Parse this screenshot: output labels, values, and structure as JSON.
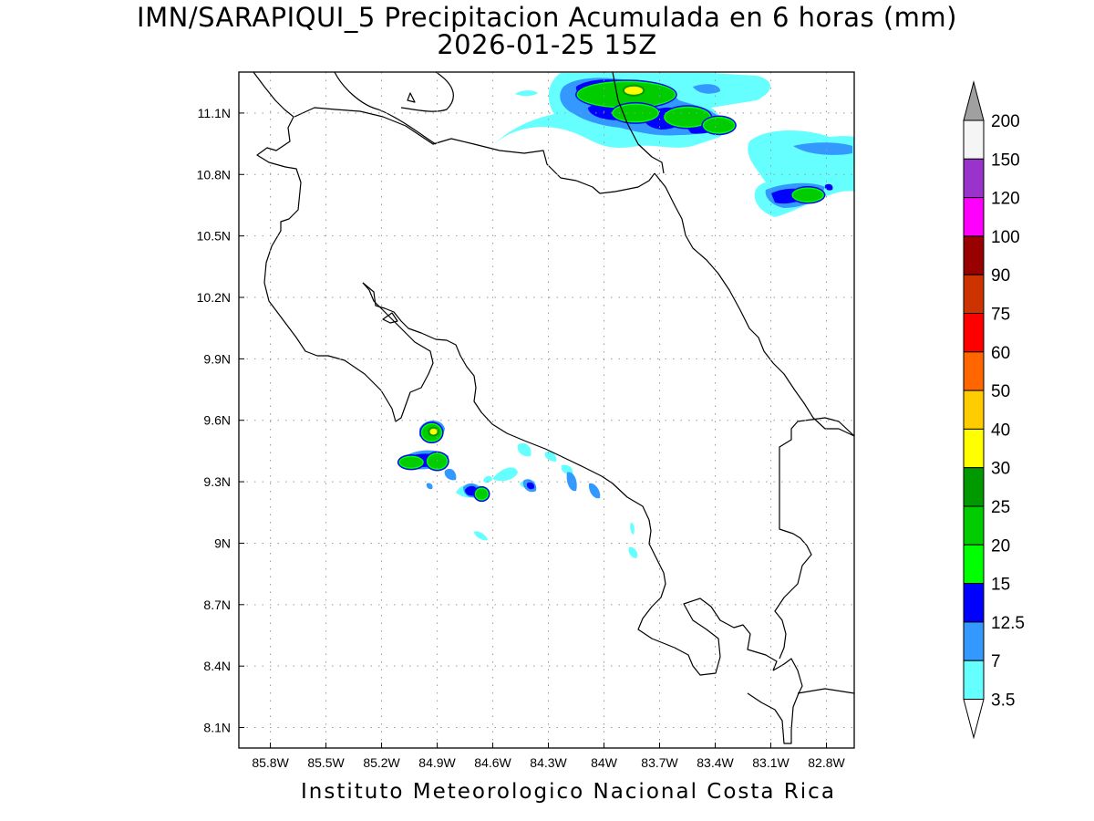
{
  "title": {
    "line1": "IMN/SARAPIQUI_5 Precipitacion Acumulada en 6 horas (mm)",
    "line2": "2026-01-25 15Z"
  },
  "footer": "Instituto Meteorologico Nacional Costa Rica",
  "map": {
    "lon_range": [
      -85.97,
      -82.65
    ],
    "lat_range": [
      8.0,
      11.3
    ],
    "x_ticks": [
      {
        "lon": -85.8,
        "label": "85.8W"
      },
      {
        "lon": -85.5,
        "label": "85.5W"
      },
      {
        "lon": -85.2,
        "label": "85.2W"
      },
      {
        "lon": -84.9,
        "label": "84.9W"
      },
      {
        "lon": -84.6,
        "label": "84.6W"
      },
      {
        "lon": -84.3,
        "label": "84.3W"
      },
      {
        "lon": -84.0,
        "label": "84W"
      },
      {
        "lon": -83.7,
        "label": "83.7W"
      },
      {
        "lon": -83.4,
        "label": "83.4W"
      },
      {
        "lon": -83.1,
        "label": "83.1W"
      },
      {
        "lon": -82.8,
        "label": "82.8W"
      }
    ],
    "y_ticks": [
      {
        "lat": 11.1,
        "label": "11.1N"
      },
      {
        "lat": 10.8,
        "label": "10.8N"
      },
      {
        "lat": 10.5,
        "label": "10.5N"
      },
      {
        "lat": 10.2,
        "label": "10.2N"
      },
      {
        "lat": 9.9,
        "label": "9.9N"
      },
      {
        "lat": 9.6,
        "label": "9.6N"
      },
      {
        "lat": 9.3,
        "label": "9.3N"
      },
      {
        "lat": 9.0,
        "label": "9N"
      },
      {
        "lat": 8.7,
        "label": "8.7N"
      },
      {
        "lat": 8.4,
        "label": "8.4N"
      },
      {
        "lat": 8.1,
        "label": "8.1N"
      }
    ],
    "grid": "dotted"
  },
  "legend": {
    "placement": "right",
    "levels": [
      "3.5",
      "7",
      "12.5",
      "15",
      "20",
      "25",
      "30",
      "40",
      "50",
      "60",
      "75",
      "90",
      "100",
      "120",
      "150",
      "200"
    ],
    "colors": [
      "#66ffff",
      "#3399ff",
      "#0000ff",
      "#00ff00",
      "#00cc00",
      "#009900",
      "#ffff00",
      "#ffcc00",
      "#ff6600",
      "#ff0000",
      "#cc3300",
      "#990000",
      "#ff00ff",
      "#9933cc",
      "#f5f5f5"
    ],
    "top_arrow_color": "#a0a0a0",
    "bottom_arrow_color": "#ffffff"
  },
  "precip_cells": [
    {
      "lon": -83.88,
      "lat": 11.19,
      "rx": 0.26,
      "ry": 0.06,
      "level": 5
    },
    {
      "lon": -83.84,
      "lat": 11.21,
      "rx": 0.05,
      "ry": 0.02,
      "level": 6
    },
    {
      "lon": -83.83,
      "lat": 11.1,
      "rx": 0.12,
      "ry": 0.04,
      "level": 5
    },
    {
      "lon": -83.55,
      "lat": 11.08,
      "rx": 0.12,
      "ry": 0.045,
      "level": 5
    },
    {
      "lon": -83.38,
      "lat": 11.04,
      "rx": 0.08,
      "ry": 0.035,
      "level": 5
    },
    {
      "lon": -82.9,
      "lat": 10.7,
      "rx": 0.08,
      "ry": 0.03,
      "level": 5
    },
    {
      "lon": -84.93,
      "lat": 9.54,
      "rx": 0.05,
      "ry": 0.04,
      "level": 5
    },
    {
      "lon": -84.92,
      "lat": 9.545,
      "rx": 0.02,
      "ry": 0.015,
      "level": 6
    },
    {
      "lon": -84.9,
      "lat": 9.4,
      "rx": 0.05,
      "ry": 0.035,
      "level": 5
    },
    {
      "lon": -85.04,
      "lat": 9.395,
      "rx": 0.06,
      "ry": 0.025,
      "level": 5
    },
    {
      "lon": -84.66,
      "lat": 9.24,
      "rx": 0.03,
      "ry": 0.025,
      "level": 5
    }
  ]
}
